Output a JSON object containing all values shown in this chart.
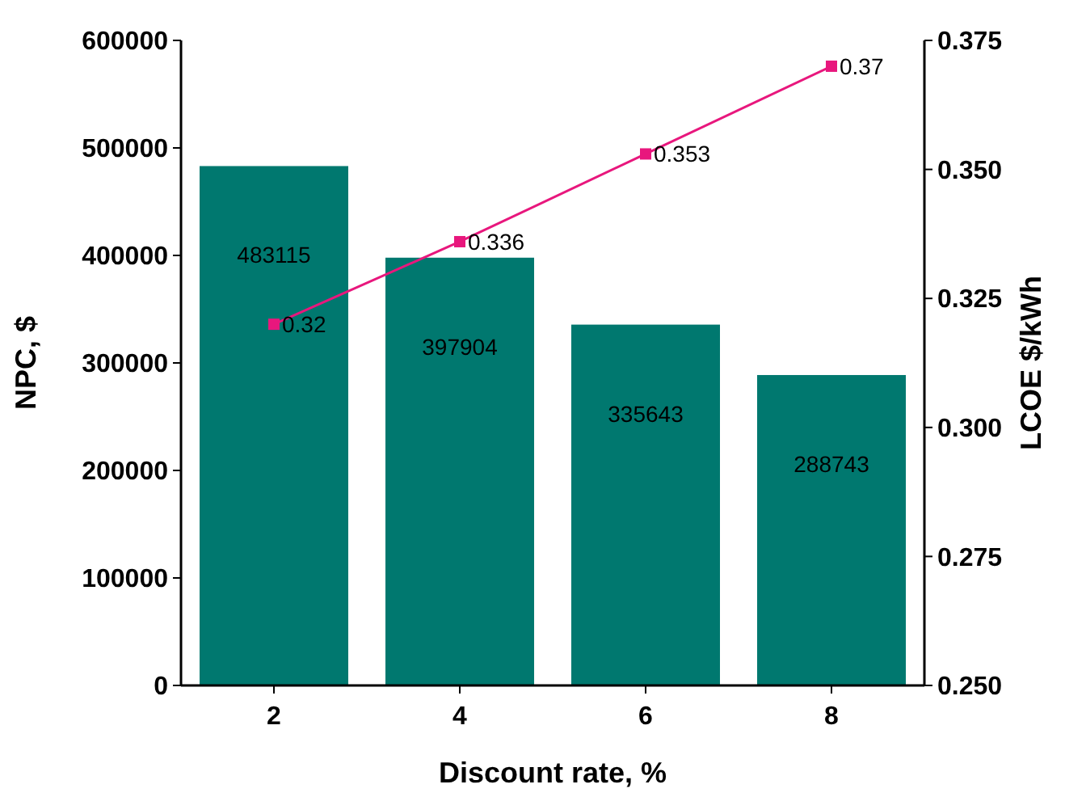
{
  "chart_data": {
    "type": "bar",
    "xlabel": "Discount rate, %",
    "ylabel": "NPC, $",
    "y2label": "LCOE $/kWh",
    "categories": [
      "2",
      "4",
      "6",
      "8"
    ],
    "series": [
      {
        "color": "#00786f",
        "values": [
          483115,
          397904,
          335643,
          288743
        ]
      },
      {
        "type": "line",
        "axis": "y2",
        "color": "#e8177d",
        "marker": "square",
        "line_style": "solid",
        "values": [
          0.32,
          0.336,
          0.353,
          0.37
        ]
      }
    ],
    "ylim": [
      0,
      600000
    ],
    "yticks": [
      0,
      100000,
      200000,
      300000,
      400000,
      500000,
      600000
    ],
    "y2lim": [
      0.25,
      0.375
    ],
    "y2ticks": [
      {
        "value": 0.25,
        "label": "0.250"
      },
      {
        "value": 0.275,
        "label": "0.275"
      },
      {
        "value": 0.3,
        "label": "0.300"
      },
      {
        "value": 0.325,
        "label": "0.325"
      },
      {
        "value": 0.35,
        "label": "0.350"
      },
      {
        "value": 0.375,
        "label": "0.375"
      }
    ],
    "data_labels": true,
    "grid": false
  }
}
